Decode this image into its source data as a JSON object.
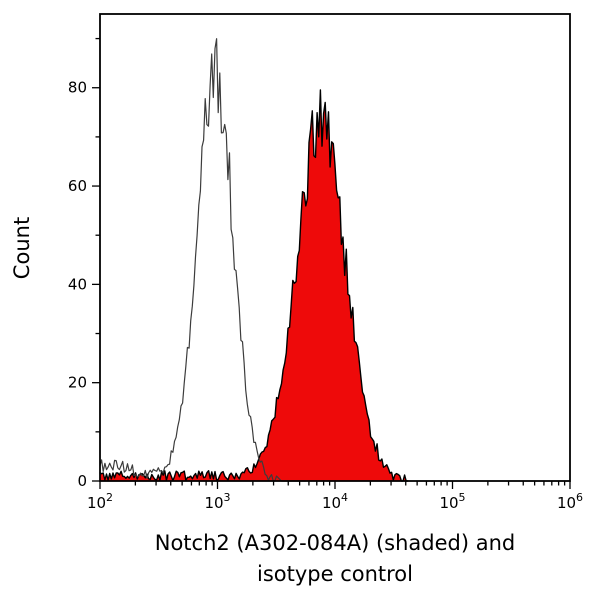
{
  "figure": {
    "background": "#ffffff",
    "axis_color": "#000000"
  },
  "chart_data": {
    "type": "area",
    "chart_kind": "flow-cytometry-overlay-histogram",
    "title": "Notch2 (A302-084A) (shaded) and isotype control",
    "title_lines": [
      "Notch2 (A302-084A) (shaded) and",
      "isotype control"
    ],
    "xlabel": "",
    "ylabel": "Count",
    "x_scale": "log10",
    "xlim_log10": [
      2,
      6
    ],
    "ylim": [
      0,
      95
    ],
    "grid": false,
    "legend": "none",
    "x_ticks": [
      {
        "base": "10",
        "exp": "2",
        "log10": 2
      },
      {
        "base": "10",
        "exp": "3",
        "log10": 3
      },
      {
        "base": "10",
        "exp": "4",
        "log10": 4
      },
      {
        "base": "10",
        "exp": "5",
        "log10": 5
      },
      {
        "base": "10",
        "exp": "6",
        "log10": 6
      }
    ],
    "x_minor_ticks": "log decades 2-9",
    "y_ticks": [
      {
        "value": 0,
        "label": "0"
      },
      {
        "value": 20,
        "label": "20"
      },
      {
        "value": 40,
        "label": "40"
      },
      {
        "value": 60,
        "label": "60"
      },
      {
        "value": 80,
        "label": "80"
      }
    ],
    "y_minor_step": 10,
    "series": [
      {
        "id": "notch2-shaded",
        "name": "Notch2 (A302-084A) (shaded)",
        "style": "shaded",
        "fill_color": "#ee0a0a",
        "line_color": "#000000",
        "line_width": 1.4,
        "seed": 99,
        "noise": 0.1,
        "jitter": 1.0,
        "range_log10": [
          2.0,
          4.62
        ],
        "peak": {
          "center_log10": 3.88,
          "sigma_log10": 0.21,
          "height": 72,
          "peak_count_approx": 79,
          "peak_x_approx": 7500
        },
        "baseline": {
          "level": 1.1,
          "cut_log10": 4.4
        }
      },
      {
        "id": "isotype-control",
        "name": "isotype control",
        "style": "open",
        "fill_color": null,
        "line_color": "#3c3c3c",
        "line_width": 1.2,
        "seed": 1234,
        "noise": 0.1,
        "jitter": 1.1,
        "range_log10": [
          2.0,
          3.75
        ],
        "peak": {
          "center_log10": 2.98,
          "sigma_log10": 0.152,
          "height": 82,
          "peak_count_approx": 90,
          "peak_x_approx": 950
        },
        "baseline": {
          "level": 1.0,
          "cut_log10": 3.35
        },
        "bump": {
          "center_log10": 2.08,
          "sigma_log10": 0.16,
          "height": 2.2
        }
      }
    ]
  }
}
